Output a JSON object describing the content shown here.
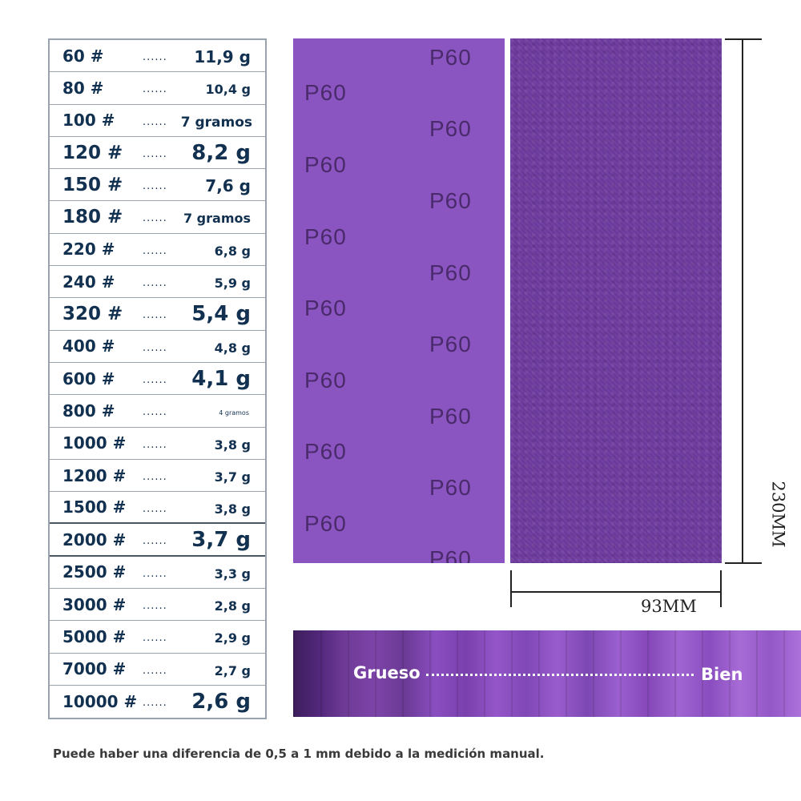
{
  "table": {
    "rows": [
      {
        "grit": "60 #",
        "dots": "......",
        "weight": "11,9 g"
      },
      {
        "grit": "80 #",
        "dots": "......",
        "weight": "10,4 g"
      },
      {
        "grit": "100 #",
        "dots": "......",
        "weight": "7 gramos"
      },
      {
        "grit": "120 #",
        "dots": "......",
        "weight": "8,2 g"
      },
      {
        "grit": "150 #",
        "dots": "......",
        "weight": "7,6 g"
      },
      {
        "grit": "180 #",
        "dots": "......",
        "weight": "7 gramos"
      },
      {
        "grit": "220 #",
        "dots": "......",
        "weight": "6,8 g"
      },
      {
        "grit": "240 #",
        "dots": "......",
        "weight": "5,9 g"
      },
      {
        "grit": "320 #",
        "dots": "......",
        "weight": "5,4 g"
      },
      {
        "grit": "400 #",
        "dots": "......",
        "weight": "4,8 g"
      },
      {
        "grit": "600 #",
        "dots": "......",
        "weight": "4,1 g"
      },
      {
        "grit": "800 #",
        "dots": "......",
        "weight": "4 gramos"
      },
      {
        "grit": "1000 #",
        "dots": "......",
        "weight": "3,8 g"
      },
      {
        "grit": "1200 #",
        "dots": "......",
        "weight": "3,7 g"
      },
      {
        "grit": "1500 #",
        "dots": "......",
        "weight": "3,8 g"
      },
      {
        "grit": "2000 #",
        "dots": "......",
        "weight": "3,7 g"
      },
      {
        "grit": "2500 #",
        "dots": "......",
        "weight": "3,3 g"
      },
      {
        "grit": "3000 #",
        "dots": "......",
        "weight": "2,8 g"
      },
      {
        "grit": "5000 #",
        "dots": "......",
        "weight": "2,9 g"
      },
      {
        "grit": "7000 #",
        "dots": "......",
        "weight": "2,7 g"
      },
      {
        "grit": "10000 #",
        "dots": "......",
        "weight": "2,6 g"
      }
    ]
  },
  "sheet": {
    "print_label": "P60",
    "back_color": "#8a55c1",
    "front_color": "#6e3b9f"
  },
  "dimensions": {
    "width": "93MM",
    "height": "230MM"
  },
  "strip": {
    "coarse_label": "Grueso",
    "fine_label": "Bien"
  },
  "footnote": "Puede haber una diferencia de 0,5 a 1 mm debido a la medición manual."
}
